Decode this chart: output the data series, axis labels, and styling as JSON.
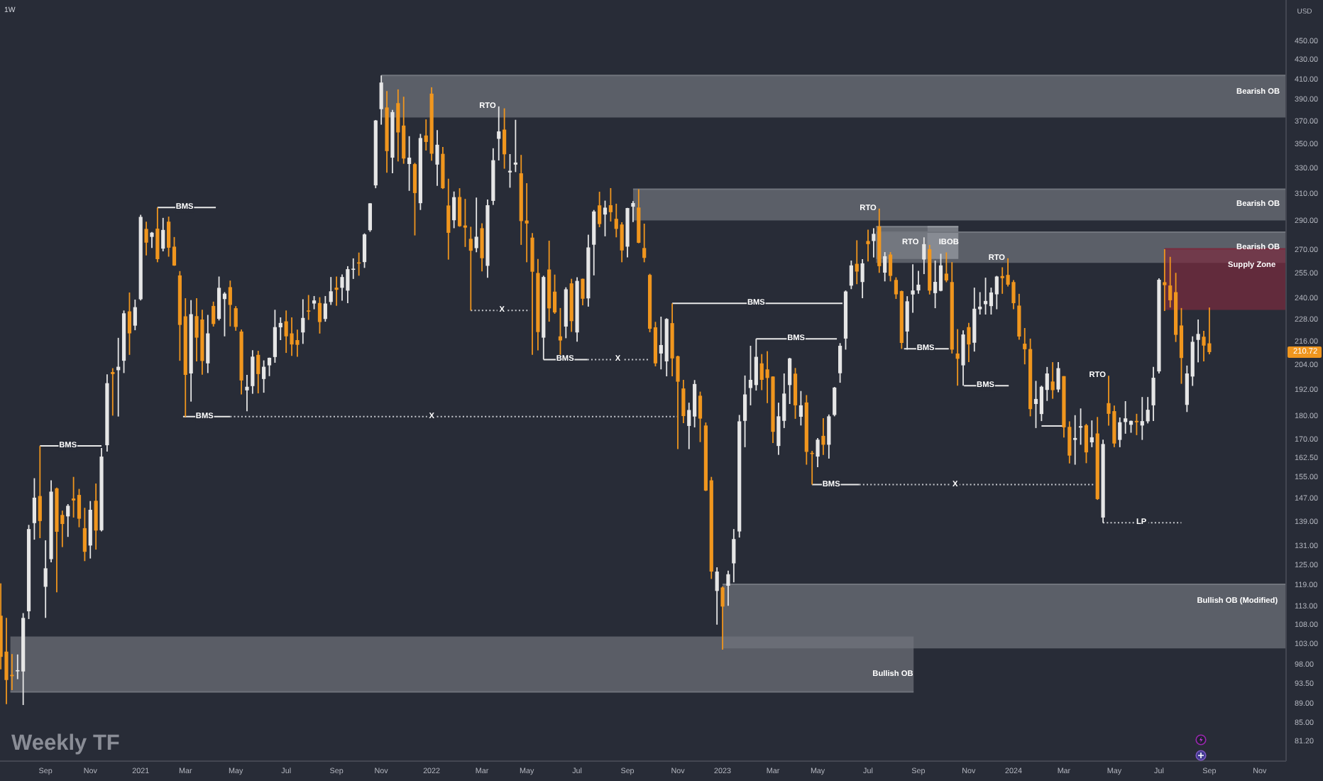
{
  "chart_data": {
    "type": "candlestick",
    "title": "Weekly TF",
    "subtitle": "1W",
    "ylabel": "USD",
    "log": "y",
    "xlim": [
      "2020-07-12",
      "2024-12-07"
    ],
    "xticks": [
      {
        "value": "2020-09-07",
        "label": "Sep"
      },
      {
        "value": "2020-11-02",
        "label": "Nov"
      },
      {
        "value": "2021-01-04",
        "label": "2021"
      },
      {
        "value": "2021-03-01",
        "label": "Mar"
      },
      {
        "value": "2021-05-03",
        "label": "May"
      },
      {
        "value": "2021-07-05",
        "label": "Jul"
      },
      {
        "value": "2021-09-06",
        "label": "Sep"
      },
      {
        "value": "2021-11-01",
        "label": "Nov"
      },
      {
        "value": "2022-01-03",
        "label": "2022"
      },
      {
        "value": "2022-03-07",
        "label": "Mar"
      },
      {
        "value": "2022-05-02",
        "label": "May"
      },
      {
        "value": "2022-07-04",
        "label": "Jul"
      },
      {
        "value": "2022-09-05",
        "label": "Sep"
      },
      {
        "value": "2022-11-07",
        "label": "Nov"
      },
      {
        "value": "2023-01-02",
        "label": "2023"
      },
      {
        "value": "2023-03-06",
        "label": "Mar"
      },
      {
        "value": "2023-05-01",
        "label": "May"
      },
      {
        "value": "2023-07-03",
        "label": "Jul"
      },
      {
        "value": "2023-09-04",
        "label": "Sep"
      },
      {
        "value": "2023-11-06",
        "label": "Nov"
      },
      {
        "value": "2024-01-01",
        "label": "2024"
      },
      {
        "value": "2024-03-04",
        "label": "Mar"
      },
      {
        "value": "2024-05-06",
        "label": "May"
      },
      {
        "value": "2024-07-01",
        "label": "Jul"
      },
      {
        "value": "2024-09-02",
        "label": "Sep"
      },
      {
        "value": "2024-11-04",
        "label": "Nov"
      }
    ],
    "ylim": [
      77.5,
      498.5
    ],
    "yticks": [
      {
        "value": 450,
        "label": "450.00"
      },
      {
        "value": 430,
        "label": "430.00"
      },
      {
        "value": 410,
        "label": "410.00"
      },
      {
        "value": 390,
        "label": "390.00"
      },
      {
        "value": 370,
        "label": "370.00"
      },
      {
        "value": 350,
        "label": "350.00"
      },
      {
        "value": 330,
        "label": "330.00"
      },
      {
        "value": 310,
        "label": "310.00"
      },
      {
        "value": 290,
        "label": "290.00"
      },
      {
        "value": 270,
        "label": "270.00"
      },
      {
        "value": 255,
        "label": "255.00"
      },
      {
        "value": 240,
        "label": "240.00"
      },
      {
        "value": 228,
        "label": "228.00"
      },
      {
        "value": 216,
        "label": "216.00"
      },
      {
        "value": 204,
        "label": "204.00"
      },
      {
        "value": 192,
        "label": "192.00"
      },
      {
        "value": 180,
        "label": "180.00"
      },
      {
        "value": 170,
        "label": "170.00"
      },
      {
        "value": 162.5,
        "label": "162.50"
      },
      {
        "value": 155,
        "label": "155.00"
      },
      {
        "value": 147,
        "label": "147.00"
      },
      {
        "value": 139,
        "label": "139.00"
      },
      {
        "value": 131,
        "label": "131.00"
      },
      {
        "value": 125,
        "label": "125.00"
      },
      {
        "value": 119,
        "label": "119.00"
      },
      {
        "value": 113,
        "label": "113.00"
      },
      {
        "value": 108,
        "label": "108.00"
      },
      {
        "value": 103,
        "label": "103.00"
      },
      {
        "value": 98,
        "label": "98.00"
      },
      {
        "value": 93.5,
        "label": "93.50"
      },
      {
        "value": 89,
        "label": "89.00"
      },
      {
        "value": 85,
        "label": "85.00"
      },
      {
        "value": 81.2,
        "label": "81.20"
      }
    ],
    "x": [
      "2020-07-13",
      "2020-07-20",
      "2020-07-27",
      "2020-08-03",
      "2020-08-10",
      "2020-08-17",
      "2020-08-24",
      "2020-08-31",
      "2020-09-07",
      "2020-09-14",
      "2020-09-21",
      "2020-09-28",
      "2020-10-05",
      "2020-10-12",
      "2020-10-19",
      "2020-10-26",
      "2020-11-02",
      "2020-11-09",
      "2020-11-16",
      "2020-11-23",
      "2020-11-30",
      "2020-12-07",
      "2020-12-14",
      "2020-12-21",
      "2020-12-28",
      "2021-01-04",
      "2021-01-11",
      "2021-01-18",
      "2021-01-25",
      "2021-02-01",
      "2021-02-08",
      "2021-02-15",
      "2021-02-22",
      "2021-03-01",
      "2021-03-08",
      "2021-03-15",
      "2021-03-22",
      "2021-03-29",
      "2021-04-05",
      "2021-04-12",
      "2021-04-19",
      "2021-04-26",
      "2021-05-03",
      "2021-05-10",
      "2021-05-17",
      "2021-05-24",
      "2021-05-31",
      "2021-06-07",
      "2021-06-14",
      "2021-06-21",
      "2021-06-28",
      "2021-07-05",
      "2021-07-12",
      "2021-07-19",
      "2021-07-26",
      "2021-08-02",
      "2021-08-09",
      "2021-08-16",
      "2021-08-23",
      "2021-08-30",
      "2021-09-06",
      "2021-09-13",
      "2021-09-20",
      "2021-09-27",
      "2021-10-04",
      "2021-10-11",
      "2021-10-18",
      "2021-10-25",
      "2021-11-01",
      "2021-11-08",
      "2021-11-15",
      "2021-11-22",
      "2021-11-29",
      "2021-12-06",
      "2021-12-13",
      "2021-12-20",
      "2021-12-27",
      "2022-01-03",
      "2022-01-10",
      "2022-01-17",
      "2022-01-24",
      "2022-01-31",
      "2022-02-07",
      "2022-02-14",
      "2022-02-21",
      "2022-02-28",
      "2022-03-07",
      "2022-03-14",
      "2022-03-21",
      "2022-03-28",
      "2022-04-04",
      "2022-04-11",
      "2022-04-18",
      "2022-04-25",
      "2022-05-02",
      "2022-05-09",
      "2022-05-16",
      "2022-05-23",
      "2022-05-30",
      "2022-06-06",
      "2022-06-13",
      "2022-06-20",
      "2022-06-27",
      "2022-07-04",
      "2022-07-11",
      "2022-07-18",
      "2022-07-25",
      "2022-08-01",
      "2022-08-08",
      "2022-08-15",
      "2022-08-22",
      "2022-08-29",
      "2022-09-05",
      "2022-09-12",
      "2022-09-19",
      "2022-09-26",
      "2022-10-03",
      "2022-10-10",
      "2022-10-17",
      "2022-10-24",
      "2022-10-31",
      "2022-11-07",
      "2022-11-14",
      "2022-11-21",
      "2022-11-28",
      "2022-12-05",
      "2022-12-12",
      "2022-12-19",
      "2022-12-26",
      "2023-01-02",
      "2023-01-09",
      "2023-01-16",
      "2023-01-23",
      "2023-01-30",
      "2023-02-06",
      "2023-02-13",
      "2023-02-20",
      "2023-02-27",
      "2023-03-06",
      "2023-03-13",
      "2023-03-20",
      "2023-03-27",
      "2023-04-03",
      "2023-04-10",
      "2023-04-17",
      "2023-04-24",
      "2023-05-01",
      "2023-05-08",
      "2023-05-15",
      "2023-05-22",
      "2023-05-29",
      "2023-06-05",
      "2023-06-12",
      "2023-06-19",
      "2023-06-26",
      "2023-07-03",
      "2023-07-10",
      "2023-07-17",
      "2023-07-24",
      "2023-07-31",
      "2023-08-07",
      "2023-08-14",
      "2023-08-21",
      "2023-08-28",
      "2023-09-04",
      "2023-09-11",
      "2023-09-18",
      "2023-09-25",
      "2023-10-02",
      "2023-10-09",
      "2023-10-16",
      "2023-10-23",
      "2023-10-30",
      "2023-11-06",
      "2023-11-13",
      "2023-11-20",
      "2023-11-27",
      "2023-12-04",
      "2023-12-11",
      "2023-12-18",
      "2023-12-25",
      "2024-01-01",
      "2024-01-08",
      "2024-01-15",
      "2024-01-22",
      "2024-01-29",
      "2024-02-05",
      "2024-02-12",
      "2024-02-19",
      "2024-02-26",
      "2024-03-04",
      "2024-03-11",
      "2024-03-18",
      "2024-03-25",
      "2024-04-01",
      "2024-04-08",
      "2024-04-15",
      "2024-04-22",
      "2024-04-29",
      "2024-05-06",
      "2024-05-13",
      "2024-05-20",
      "2024-05-27",
      "2024-06-03",
      "2024-06-10",
      "2024-06-17",
      "2024-06-24",
      "2024-07-01",
      "2024-07-08",
      "2024-07-15",
      "2024-07-22",
      "2024-07-29",
      "2024-08-05",
      "2024-08-12",
      "2024-08-19",
      "2024-08-26",
      "2024-09-02"
    ],
    "ohlc": [
      [
        110.6,
        119.7,
        97.0,
        100.0
      ],
      [
        101.3,
        110.0,
        89.1,
        94.5
      ],
      [
        95.7,
        100.7,
        92.2,
        95.4
      ],
      [
        96.6,
        100.6,
        94.7,
        96.8
      ],
      [
        96.5,
        111.3,
        88.9,
        110.0
      ],
      [
        111.8,
        138.1,
        109.7,
        136.7
      ],
      [
        138.7,
        154.8,
        133.2,
        147.6
      ],
      [
        148.2,
        167.5,
        133.7,
        139.4
      ],
      [
        118.7,
        133.0,
        110.0,
        124.2
      ],
      [
        127.0,
        154.0,
        126.0,
        149.8
      ],
      [
        151.0,
        151.3,
        117.1,
        135.8
      ],
      [
        141.5,
        143.0,
        130.8,
        138.4
      ],
      [
        141.0,
        145.3,
        134.1,
        144.7
      ],
      [
        147.3,
        155.3,
        140.6,
        146.6
      ],
      [
        148.6,
        150.8,
        137.3,
        140.2
      ],
      [
        137.0,
        144.0,
        126.4,
        129.3
      ],
      [
        131.3,
        146.4,
        127.2,
        143.3
      ],
      [
        146.5,
        152.8,
        130.0,
        136.2
      ],
      [
        136.3,
        166.7,
        135.9,
        163.2
      ],
      [
        167.8,
        199.6,
        165.2,
        195.3
      ],
      [
        200.7,
        202.6,
        180.4,
        199.7
      ],
      [
        201.6,
        218.2,
        180.0,
        203.3
      ],
      [
        206.3,
        233.3,
        200.2,
        231.7
      ],
      [
        232.8,
        243.8,
        209.3,
        220.6
      ],
      [
        224.8,
        239.6,
        222.3,
        235.2
      ],
      [
        239.8,
        294.8,
        239.1,
        293.3
      ],
      [
        284.8,
        289.9,
        266.9,
        275.4
      ],
      [
        279.3,
        282.7,
        271.8,
        282.2
      ],
      [
        285.0,
        300.1,
        262.5,
        264.5
      ],
      [
        271.4,
        292.6,
        269.6,
        284.1
      ],
      [
        289.9,
        293.5,
        266.1,
        272.0
      ],
      [
        272.7,
        279.2,
        260.2,
        260.4
      ],
      [
        254.2,
        256.9,
        206.3,
        225.2
      ],
      [
        230.0,
        240.4,
        179.8,
        199.3
      ],
      [
        200.0,
        239.3,
        186.7,
        231.2
      ],
      [
        230.1,
        240.4,
        206.0,
        218.3
      ],
      [
        228.2,
        233.7,
        199.4,
        206.2
      ],
      [
        205.0,
        230.8,
        200.2,
        220.6
      ],
      [
        235.9,
        238.4,
        224.3,
        225.7
      ],
      [
        228.6,
        253.5,
        227.7,
        246.6
      ],
      [
        239.9,
        244.0,
        219.0,
        243.1
      ],
      [
        247.0,
        251.0,
        224.4,
        236.5
      ],
      [
        234.6,
        235.8,
        222.0,
        224.1
      ],
      [
        221.6,
        222.7,
        190.0,
        196.6
      ],
      [
        191.9,
        199.3,
        182.3,
        193.6
      ],
      [
        193.9,
        211.7,
        190.3,
        208.4
      ],
      [
        209.3,
        211.4,
        190.5,
        199.7
      ],
      [
        197.3,
        206.5,
        190.8,
        203.3
      ],
      [
        204.0,
        207.9,
        198.7,
        207.8
      ],
      [
        208.2,
        233.7,
        205.3,
        224.0
      ],
      [
        223.9,
        229.4,
        217.0,
        226.3
      ],
      [
        227.2,
        233.3,
        210.3,
        219.0
      ],
      [
        220.6,
        229.4,
        208.8,
        214.7
      ],
      [
        217.0,
        222.6,
        208.3,
        214.5
      ],
      [
        221.1,
        239.8,
        215.0,
        229.1
      ],
      [
        233.3,
        242.3,
        228.0,
        233.0
      ],
      [
        237.3,
        241.7,
        234.0,
        239.1
      ],
      [
        237.6,
        241.0,
        220.5,
        226.8
      ],
      [
        228.5,
        241.7,
        227.0,
        237.3
      ],
      [
        238.2,
        253.2,
        236.5,
        244.5
      ],
      [
        246.7,
        253.5,
        236.0,
        245.4
      ],
      [
        246.6,
        254.8,
        239.0,
        253.2
      ],
      [
        244.9,
        260.0,
        237.5,
        258.1
      ],
      [
        257.7,
        265.0,
        252.0,
        258.4
      ],
      [
        262.4,
        268.8,
        254.0,
        261.8
      ],
      [
        262.6,
        281.7,
        258.9,
        281.0
      ],
      [
        283.9,
        303.3,
        282.8,
        303.2
      ],
      [
        316.8,
        371.7,
        314.6,
        371.3
      ],
      [
        381.7,
        414.5,
        367.5,
        407.4
      ],
      [
        383.3,
        399.0,
        326.7,
        344.5
      ],
      [
        339.0,
        381.0,
        326.3,
        379.0
      ],
      [
        387.4,
        400.6,
        335.9,
        360.6
      ],
      [
        366.7,
        393.5,
        334.0,
        338.3
      ],
      [
        333.8,
        357.3,
        312.6,
        339.0
      ],
      [
        333.7,
        334.7,
        280.3,
        310.9
      ],
      [
        303.3,
        359.3,
        298.3,
        355.7
      ],
      [
        357.9,
        372.3,
        345.0,
        352.3
      ],
      [
        396.5,
        402.7,
        336.5,
        342.3
      ],
      [
        333.3,
        362.7,
        316.5,
        349.9
      ],
      [
        342.2,
        348.0,
        314.0,
        314.6
      ],
      [
        301.6,
        322.0,
        264.2,
        282.1
      ],
      [
        290.9,
        312.1,
        285.3,
        307.8
      ],
      [
        307.9,
        314.6,
        286.3,
        286.7
      ],
      [
        287.2,
        306.5,
        272.5,
        285.7
      ],
      [
        278.0,
        286.3,
        233.3,
        270.0
      ],
      [
        271.7,
        307.5,
        269.0,
        279.4
      ],
      [
        285.3,
        288.7,
        256.7,
        265.1
      ],
      [
        260.2,
        306.0,
        252.7,
        301.8
      ],
      [
        305.0,
        346.9,
        302.0,
        336.9
      ],
      [
        355.0,
        384.3,
        336.7,
        361.5
      ],
      [
        363.1,
        382.5,
        330.0,
        341.8
      ],
      [
        327.0,
        342.0,
        315.0,
        328.3
      ],
      [
        333.3,
        371.9,
        327.3,
        335.0
      ],
      [
        326.3,
        341.3,
        273.9,
        290.3
      ],
      [
        290.7,
        318.5,
        262.5,
        288.6
      ],
      [
        278.8,
        281.9,
        209.3,
        256.5
      ],
      [
        255.7,
        264.6,
        211.6,
        221.3
      ],
      [
        218.3,
        254.0,
        206.9,
        253.2
      ],
      [
        257.9,
        276.7,
        227.0,
        234.5
      ],
      [
        244.3,
        254.7,
        231.4,
        232.2
      ],
      [
        219.0,
        234.7,
        208.7,
        216.8
      ],
      [
        224.3,
        246.9,
        218.0,
        245.7
      ],
      [
        249.3,
        252.1,
        221.4,
        227.3
      ],
      [
        221.1,
        253.1,
        216.2,
        250.8
      ],
      [
        252.1,
        252.2,
        236.3,
        240.1
      ],
      [
        240.3,
        280.8,
        235.5,
        272.2
      ],
      [
        274.0,
        298.3,
        254.2,
        297.2
      ],
      [
        301.7,
        311.9,
        286.0,
        288.2
      ],
      [
        295.0,
        305.2,
        279.7,
        300.0
      ],
      [
        301.8,
        314.7,
        290.0,
        296.7
      ],
      [
        291.9,
        302.9,
        279.0,
        284.8
      ],
      [
        287.9,
        289.5,
        262.5,
        270.2
      ],
      [
        272.7,
        299.9,
        265.7,
        299.7
      ],
      [
        300.7,
        304.8,
        289.6,
        303.4
      ],
      [
        300.1,
        313.8,
        275.0,
        275.3
      ],
      [
        271.8,
        288.5,
        262.5,
        265.3
      ],
      [
        254.5,
        255.2,
        221.2,
        223.1
      ],
      [
        223.9,
        226.9,
        203.5,
        205.0
      ],
      [
        210.0,
        229.8,
        202.0,
        214.4
      ],
      [
        206.0,
        228.9,
        198.6,
        228.5
      ],
      [
        226.2,
        237.4,
        198.6,
        207.5
      ],
      [
        208.6,
        208.9,
        166.2,
        196.0
      ],
      [
        192.8,
        196.9,
        177.1,
        180.2
      ],
      [
        175.9,
        186.2,
        166.2,
        182.9
      ],
      [
        180.0,
        196.8,
        175.3,
        194.9
      ],
      [
        189.4,
        191.3,
        169.1,
        179.1
      ],
      [
        176.1,
        177.4,
        150.0,
        150.2
      ],
      [
        154.0,
        155.3,
        121.0,
        123.2
      ],
      [
        117.5,
        124.5,
        108.2,
        123.2
      ],
      [
        118.5,
        118.8,
        101.8,
        113.1
      ],
      [
        119.0,
        123.5,
        113.3,
        122.4
      ],
      [
        125.7,
        136.7,
        120.0,
        133.4
      ],
      [
        135.9,
        180.7,
        133.9,
        177.9
      ],
      [
        178.1,
        199.0,
        167.0,
        190.0
      ],
      [
        193.0,
        214.0,
        185.0,
        196.9
      ],
      [
        194.4,
        217.7,
        191.8,
        208.3
      ],
      [
        205.0,
        209.7,
        192.0,
        196.9
      ],
      [
        202.0,
        211.2,
        186.0,
        197.8
      ],
      [
        198.5,
        198.6,
        168.7,
        173.4
      ],
      [
        167.5,
        186.2,
        163.9,
        180.1
      ],
      [
        178.1,
        200.0,
        175.0,
        190.4
      ],
      [
        194.4,
        207.8,
        185.6,
        207.5
      ],
      [
        199.9,
        202.7,
        179.0,
        185.0
      ],
      [
        179.9,
        191.6,
        176.1,
        185.0
      ],
      [
        186.3,
        189.7,
        160.0,
        165.1
      ],
      [
        164.7,
        165.5,
        152.4,
        164.3
      ],
      [
        163.2,
        170.8,
        159.0,
        170.1
      ],
      [
        171.7,
        179.3,
        163.9,
        168.0
      ],
      [
        168.0,
        180.9,
        162.4,
        180.1
      ],
      [
        180.7,
        193.5,
        180.1,
        193.2
      ],
      [
        200.1,
        215.4,
        195.5,
        214.0
      ],
      [
        217.8,
        245.0,
        212.0,
        244.4
      ],
      [
        247.9,
        263.6,
        245.8,
        260.5
      ],
      [
        261.5,
        277.0,
        248.8,
        256.6
      ],
      [
        250.1,
        264.5,
        240.4,
        261.8
      ],
      [
        276.5,
        284.3,
        263.0,
        274.4
      ],
      [
        276.5,
        285.3,
        265.6,
        281.4
      ],
      [
        286.6,
        299.3,
        255.8,
        260.0
      ],
      [
        255.9,
        269.1,
        250.5,
        266.4
      ],
      [
        267.5,
        269.1,
        250.5,
        253.9
      ],
      [
        251.4,
        253.0,
        240.0,
        242.7
      ],
      [
        244.6,
        244.9,
        212.4,
        215.5
      ],
      [
        221.6,
        241.6,
        212.0,
        238.6
      ],
      [
        242.6,
        261.2,
        232.0,
        245.0
      ],
      [
        245.0,
        257.0,
        243.0,
        248.5
      ],
      [
        264.3,
        279.0,
        255.0,
        274.4
      ],
      [
        271.0,
        273.9,
        242.6,
        244.9
      ],
      [
        243.4,
        263.6,
        234.6,
        250.2
      ],
      [
        244.8,
        268.0,
        244.5,
        260.5
      ],
      [
        255.3,
        268.9,
        250.0,
        251.1
      ],
      [
        250.1,
        262.6,
        210.0,
        212.0
      ],
      [
        210.0,
        222.9,
        194.1,
        207.3
      ],
      [
        204.0,
        222.2,
        194.1,
        220.0
      ],
      [
        224.0,
        226.3,
        205.6,
        214.7
      ],
      [
        215.6,
        246.7,
        211.0,
        234.3
      ],
      [
        234.0,
        244.0,
        231.0,
        235.5
      ],
      [
        236.9,
        252.8,
        231.0,
        238.8
      ],
      [
        235.8,
        246.7,
        231.0,
        243.8
      ],
      [
        242.7,
        253.9,
        234.0,
        253.5
      ],
      [
        253.8,
        259.3,
        243.0,
        252.5
      ],
      [
        254.5,
        265.1,
        247.4,
        248.5
      ],
      [
        250.1,
        251.3,
        234.0,
        237.5
      ],
      [
        236.1,
        243.0,
        217.2,
        218.9
      ],
      [
        215.1,
        223.5,
        204.5,
        212.2
      ],
      [
        212.3,
        217.8,
        180.1,
        183.3
      ],
      [
        185.6,
        196.4,
        175.0,
        187.9
      ],
      [
        181.1,
        194.1,
        178.0,
        193.6
      ],
      [
        192.1,
        203.2,
        187.0,
        200.0
      ],
      [
        196.1,
        205.6,
        188.0,
        192.0
      ],
      [
        192.3,
        205.6,
        191.0,
        202.6
      ],
      [
        198.7,
        198.7,
        171.0,
        175.3
      ],
      [
        175.5,
        177.9,
        160.5,
        163.6
      ],
      [
        170.0,
        180.6,
        160.0,
        170.8
      ],
      [
        175.2,
        183.6,
        168.0,
        175.8
      ],
      [
        176.2,
        176.8,
        160.6,
        164.9
      ],
      [
        169.0,
        178.3,
        167.0,
        171.1
      ],
      [
        172.7,
        179.8,
        146.8,
        147.1
      ],
      [
        140.6,
        170.1,
        138.8,
        168.3
      ],
      [
        186.0,
        198.9,
        176.0,
        181.2
      ],
      [
        182.4,
        184.9,
        167.0,
        168.5
      ],
      [
        170.0,
        179.6,
        167.0,
        177.5
      ],
      [
        177.6,
        186.9,
        172.6,
        179.2
      ],
      [
        176.4,
        178.2,
        173.0,
        178.1
      ],
      [
        178.1,
        181.2,
        172.0,
        177.5
      ],
      [
        176.1,
        188.8,
        170.0,
        178.0
      ],
      [
        177.9,
        188.8,
        177.0,
        183.0
      ],
      [
        185.0,
        203.2,
        178.0,
        197.9
      ],
      [
        201.0,
        252.4,
        200.0,
        251.5
      ],
      [
        250.0,
        271.0,
        233.0,
        248.2
      ],
      [
        248.0,
        266.0,
        235.0,
        239.2
      ],
      [
        244.0,
        255.8,
        216.0,
        219.8
      ],
      [
        224.9,
        234.7,
        195.0,
        207.7
      ],
      [
        185.2,
        203.9,
        182.0,
        200.0
      ],
      [
        198.5,
        219.0,
        194.0,
        216.1
      ],
      [
        217.1,
        228.2,
        205.5,
        220.3
      ],
      [
        218.8,
        222.0,
        206.0,
        214.1
      ],
      [
        215.3,
        235.0,
        209.6,
        210.72
      ]
    ],
    "colors": [
      "#f0961e",
      "#f0961e",
      "#f0961e",
      "#e6e6e6",
      "#e6e6e6",
      "#e6e6e6",
      "#e6e6e6",
      "#f0961e",
      "#e6e6e6",
      "#e6e6e6",
      "#f0961e",
      "#f0961e",
      "#e6e6e6",
      "#f0961e",
      "#f0961e",
      "#f0961e",
      "#e6e6e6",
      "#f0961e",
      "#e6e6e6",
      "#e6e6e6",
      "#f0961e",
      "#e6e6e6",
      "#e6e6e6",
      "#f0961e",
      "#e6e6e6",
      "#e6e6e6",
      "#f0961e",
      "#e6e6e6",
      "#f0961e",
      "#e6e6e6",
      "#f0961e",
      "#f0961e",
      "#f0961e",
      "#f0961e",
      "#e6e6e6",
      "#f0961e",
      "#f0961e",
      "#e6e6e6",
      "#f0961e",
      "#e6e6e6",
      "#e6e6e6",
      "#f0961e",
      "#f0961e",
      "#f0961e",
      "#e6e6e6",
      "#e6e6e6",
      "#f0961e",
      "#e6e6e6",
      "#e6e6e6",
      "#e6e6e6",
      "#e6e6e6",
      "#f0961e",
      "#f0961e",
      "#f0961e",
      "#e6e6e6",
      "#f0961e",
      "#e6e6e6",
      "#f0961e",
      "#e6e6e6",
      "#e6e6e6",
      "#f0961e",
      "#e6e6e6",
      "#e6e6e6",
      "#e6e6e6",
      "#f0961e",
      "#e6e6e6",
      "#e6e6e6",
      "#e6e6e6",
      "#e6e6e6",
      "#f0961e",
      "#e6e6e6",
      "#f0961e",
      "#f0961e",
      "#e6e6e6",
      "#f0961e",
      "#e6e6e6",
      "#f0961e",
      "#f0961e",
      "#e6e6e6",
      "#f0961e",
      "#f0961e",
      "#e6e6e6",
      "#f0961e",
      "#f0961e",
      "#f0961e",
      "#e6e6e6",
      "#f0961e",
      "#e6e6e6",
      "#e6e6e6",
      "#e6e6e6",
      "#f0961e",
      "#e6e6e6",
      "#e6e6e6",
      "#f0961e",
      "#f0961e",
      "#f0961e",
      "#f0961e",
      "#e6e6e6",
      "#f0961e",
      "#f0961e",
      "#f0961e",
      "#e6e6e6",
      "#f0961e",
      "#e6e6e6",
      "#f0961e",
      "#e6e6e6",
      "#e6e6e6",
      "#f0961e",
      "#e6e6e6",
      "#f0961e",
      "#f0961e",
      "#f0961e",
      "#e6e6e6",
      "#e6e6e6",
      "#f0961e",
      "#f0961e",
      "#f0961e",
      "#f0961e",
      "#e6e6e6",
      "#e6e6e6",
      "#f0961e",
      "#f0961e",
      "#f0961e",
      "#e6e6e6",
      "#e6e6e6",
      "#f0961e",
      "#f0961e",
      "#f0961e",
      "#e6e6e6",
      "#f0961e",
      "#e6e6e6",
      "#e6e6e6",
      "#e6e6e6",
      "#e6e6e6",
      "#e6e6e6",
      "#e6e6e6",
      "#f0961e",
      "#f0961e",
      "#f0961e",
      "#e6e6e6",
      "#e6e6e6",
      "#e6e6e6",
      "#f0961e",
      "#e6e6e6",
      "#f0961e",
      "#f0961e",
      "#e6e6e6",
      "#f0961e",
      "#e6e6e6",
      "#e6e6e6",
      "#e6e6e6",
      "#e6e6e6",
      "#e6e6e6",
      "#f0961e",
      "#e6e6e6",
      "#f0961e",
      "#e6e6e6",
      "#f0961e",
      "#e6e6e6",
      "#f0961e",
      "#f0961e",
      "#f0961e",
      "#e6e6e6",
      "#e6e6e6",
      "#e6e6e6",
      "#e6e6e6",
      "#f0961e",
      "#e6e6e6",
      "#e6e6e6",
      "#f0961e",
      "#f0961e",
      "#f0961e",
      "#e6e6e6",
      "#f0961e",
      "#e6e6e6",
      "#e6e6e6",
      "#e6e6e6",
      "#e6e6e6",
      "#e6e6e6",
      "#f0961e",
      "#f0961e",
      "#f0961e",
      "#f0961e",
      "#f0961e",
      "#f0961e",
      "#e6e6e6",
      "#e6e6e6",
      "#e6e6e6",
      "#f0961e",
      "#e6e6e6",
      "#f0961e",
      "#f0961e",
      "#e6e6e6",
      "#e6e6e6",
      "#f0961e",
      "#e6e6e6",
      "#f0961e",
      "#e6e6e6",
      "#f0961e",
      "#f0961e",
      "#e6e6e6",
      "#e6e6e6",
      "#e6e6e6",
      "#f0961e",
      "#e6e6e6",
      "#e6e6e6",
      "#e6e6e6",
      "#e6e6e6",
      "#f0961e",
      "#f0961e",
      "#f0961e",
      "#f0961e",
      "#e6e6e6",
      "#e6e6e6",
      "#e6e6e6",
      "#f0961e",
      "#f0961e"
    ],
    "series": [
      {
        "type": "line",
        "x": [
          "2021-11-01",
          "2024-12-07"
        ],
        "values": [
          414.5,
          414.5
        ],
        "lower": [
          374,
          374
        ],
        "upper": [
          414.5,
          414.5
        ],
        "color": "#71757d"
      },
      {
        "type": "line",
        "x": [
          "2022-09-12",
          "2024-12-07"
        ],
        "values": [
          313.8,
          313.8
        ],
        "lower": [
          290.8,
          290.8
        ],
        "upper": [
          313.8,
          313.8
        ],
        "color": "#71757d"
      },
      {
        "type": "line",
        "x": [
          "2023-07-13",
          "2024-12-07"
        ],
        "values": [
          282.6,
          282.6
        ],
        "lower": [
          262.1,
          262.1
        ],
        "upper": [
          282.6,
          282.6
        ],
        "color": "#71757d"
      },
      {
        "type": "line",
        "x": [
          "2023-07-13",
          "2023-09-15"
        ],
        "values": [
          286.4,
          286.4
        ],
        "lower": [
          264.6,
          264.6
        ],
        "upper": [
          286.4,
          286.4
        ],
        "color": "#7d8189"
      },
      {
        "type": "line",
        "x": [
          "2023-09-15",
          "2023-10-24"
        ],
        "values": [
          286.4,
          286.4
        ],
        "lower": [
          264.6,
          264.6
        ],
        "upper": [
          286.4,
          286.4
        ],
        "color": "#9a9ea5"
      },
      {
        "type": "line",
        "x": [
          "2024-07-08",
          "2024-12-07"
        ],
        "values": [
          271.3,
          271.3
        ],
        "lower": [
          233.6,
          233.6
        ],
        "upper": [
          271.3,
          271.3
        ],
        "color": "#7a2b3e"
      },
      {
        "type": "line",
        "x": [
          "2020-07-25",
          "2023-08-29"
        ],
        "values": [
          91.8,
          91.8
        ],
        "lower": [
          91.8,
          91.8
        ],
        "upper": [
          105.1,
          105.1
        ],
        "color": "#6f727a"
      },
      {
        "type": "line",
        "x": [
          "2023-01-02",
          "2024-12-07"
        ],
        "values": [
          119.4,
          119.4
        ],
        "lower": [
          102.1,
          102.1
        ],
        "upper": [
          119.4,
          119.4
        ],
        "color": "#71757d"
      },
      {
        "type": "line",
        "x": [
          "2020-08-31",
          "2020-11-16"
        ],
        "values": [
          167.5,
          167.5
        ],
        "color": "#e8e8e8",
        "line_style": "solid"
      },
      {
        "type": "line",
        "x": [
          "2021-01-25",
          "2021-04-08"
        ],
        "values": [
          300.1,
          300.1
        ],
        "color": "#e8e8e8",
        "line_style": "solid"
      },
      {
        "type": "line",
        "x": [
          "2021-02-26",
          "2021-04-26"
        ],
        "values": [
          180,
          180
        ],
        "color": "#e8e8e8",
        "line_style": "solid"
      },
      {
        "type": "line",
        "x": [
          "2021-04-26",
          "2022-11-06"
        ],
        "values": [
          180,
          180
        ],
        "color": "#c8cad0",
        "line_style": "dotted"
      },
      {
        "type": "line",
        "x": [
          "2022-02-21",
          "2022-05-06"
        ],
        "values": [
          233.3,
          233.3
        ],
        "color": "#c8cad0",
        "line_style": "dotted"
      },
      {
        "type": "line",
        "x": [
          "2022-05-23",
          "2022-07-17"
        ],
        "values": [
          206.9,
          206.9
        ],
        "color": "#e8e8e8",
        "line_style": "solid"
      },
      {
        "type": "line",
        "x": [
          "2022-07-17",
          "2022-10-02"
        ],
        "values": [
          206.9,
          206.9
        ],
        "color": "#c8cad0",
        "line_style": "dotted"
      },
      {
        "type": "line",
        "x": [
          "2022-10-31",
          "2023-06-01"
        ],
        "values": [
          237.4,
          237.4
        ],
        "color": "#e8e8e8",
        "line_style": "solid"
      },
      {
        "type": "line",
        "x": [
          "2023-02-13",
          "2023-05-25"
        ],
        "values": [
          217.7,
          217.7
        ],
        "color": "#e8e8e8",
        "line_style": "solid"
      },
      {
        "type": "line",
        "x": [
          "2023-04-24",
          "2023-06-22"
        ],
        "values": [
          152.4,
          152.4
        ],
        "color": "#e8e8e8",
        "line_style": "solid"
      },
      {
        "type": "line",
        "x": [
          "2023-06-22",
          "2024-04-11"
        ],
        "values": [
          152.4,
          152.4
        ],
        "color": "#c8cad0",
        "line_style": "dotted"
      },
      {
        "type": "line",
        "x": [
          "2023-08-17",
          "2023-10-12"
        ],
        "values": [
          212.4,
          212.4
        ],
        "color": "#e8e8e8",
        "line_style": "solid"
      },
      {
        "type": "line",
        "x": [
          "2023-10-31",
          "2023-12-26"
        ],
        "values": [
          194.1,
          194.1
        ],
        "color": "#e8e8e8",
        "line_style": "solid"
      },
      {
        "type": "line",
        "x": [
          "2024-02-05",
          "2024-03-03"
        ],
        "values": [
          175.9,
          175.9
        ],
        "color": "#e8e8e8",
        "line_style": "solid"
      },
      {
        "type": "line",
        "x": [
          "2024-04-22",
          "2024-07-29"
        ],
        "values": [
          138.8,
          138.8
        ],
        "color": "#c8cad0",
        "line_style": "dotted"
      }
    ],
    "annotations": [
      {
        "text": "BMS",
        "x": "2020-10-05",
        "y": 167.5
      },
      {
        "text": "BMS",
        "x": "2021-02-28",
        "y": 300.1
      },
      {
        "text": "BMS",
        "x": "2021-03-25",
        "y": 180
      },
      {
        "text": "X",
        "x": "2022-01-03",
        "y": 180
      },
      {
        "text": "X",
        "x": "2022-04-01",
        "y": 233.3
      },
      {
        "text": "BMS",
        "x": "2022-06-19",
        "y": 206.9
      },
      {
        "text": "X",
        "x": "2022-08-24",
        "y": 206.9
      },
      {
        "text": "BMS",
        "x": "2023-02-13",
        "y": 237.4
      },
      {
        "text": "BMS",
        "x": "2023-04-04",
        "y": 217.7
      },
      {
        "text": "BMS",
        "x": "2023-05-18",
        "y": 152.4
      },
      {
        "text": "X",
        "x": "2023-10-20",
        "y": 152.4
      },
      {
        "text": "BMS",
        "x": "2023-09-13",
        "y": 212.4
      },
      {
        "text": "BMS",
        "x": "2023-11-27",
        "y": 194.1
      },
      {
        "text": "LP",
        "x": "2024-06-09",
        "y": 138.8
      },
      {
        "text": "RTO",
        "x": "2022-03-28",
        "y": 384.3
      },
      {
        "text": "RTO",
        "x": "2023-07-17",
        "y": 299.3
      },
      {
        "text": "RTO",
        "x": "2023-12-25",
        "y": 265.1
      },
      {
        "text": "RTO",
        "x": "2024-04-29",
        "y": 198.9
      },
      {
        "text": "Bearish OB",
        "x": "2024-11-02",
        "y": 414.5
      },
      {
        "text": "Bearish OB",
        "x": "2024-11-02",
        "y": 313.8
      },
      {
        "text": "Bearish OB",
        "x": "2024-11-02",
        "y": 282.6
      },
      {
        "text": "RTO",
        "x": "2023-08-25",
        "y": 286.4
      },
      {
        "text": "IBOB",
        "x": "2023-10-12",
        "y": 286.4
      },
      {
        "text": "Supply Zone",
        "x": "2024-10-25",
        "y": 271.3
      },
      {
        "text": "Bullish OB",
        "x": "2023-08-03",
        "y": 91.8
      },
      {
        "text": "Bullish OB (Modified)",
        "x": "2024-10-07",
        "y": 119.4
      },
      {
        "text": "210.72",
        "y": 210.72
      }
    ]
  }
}
